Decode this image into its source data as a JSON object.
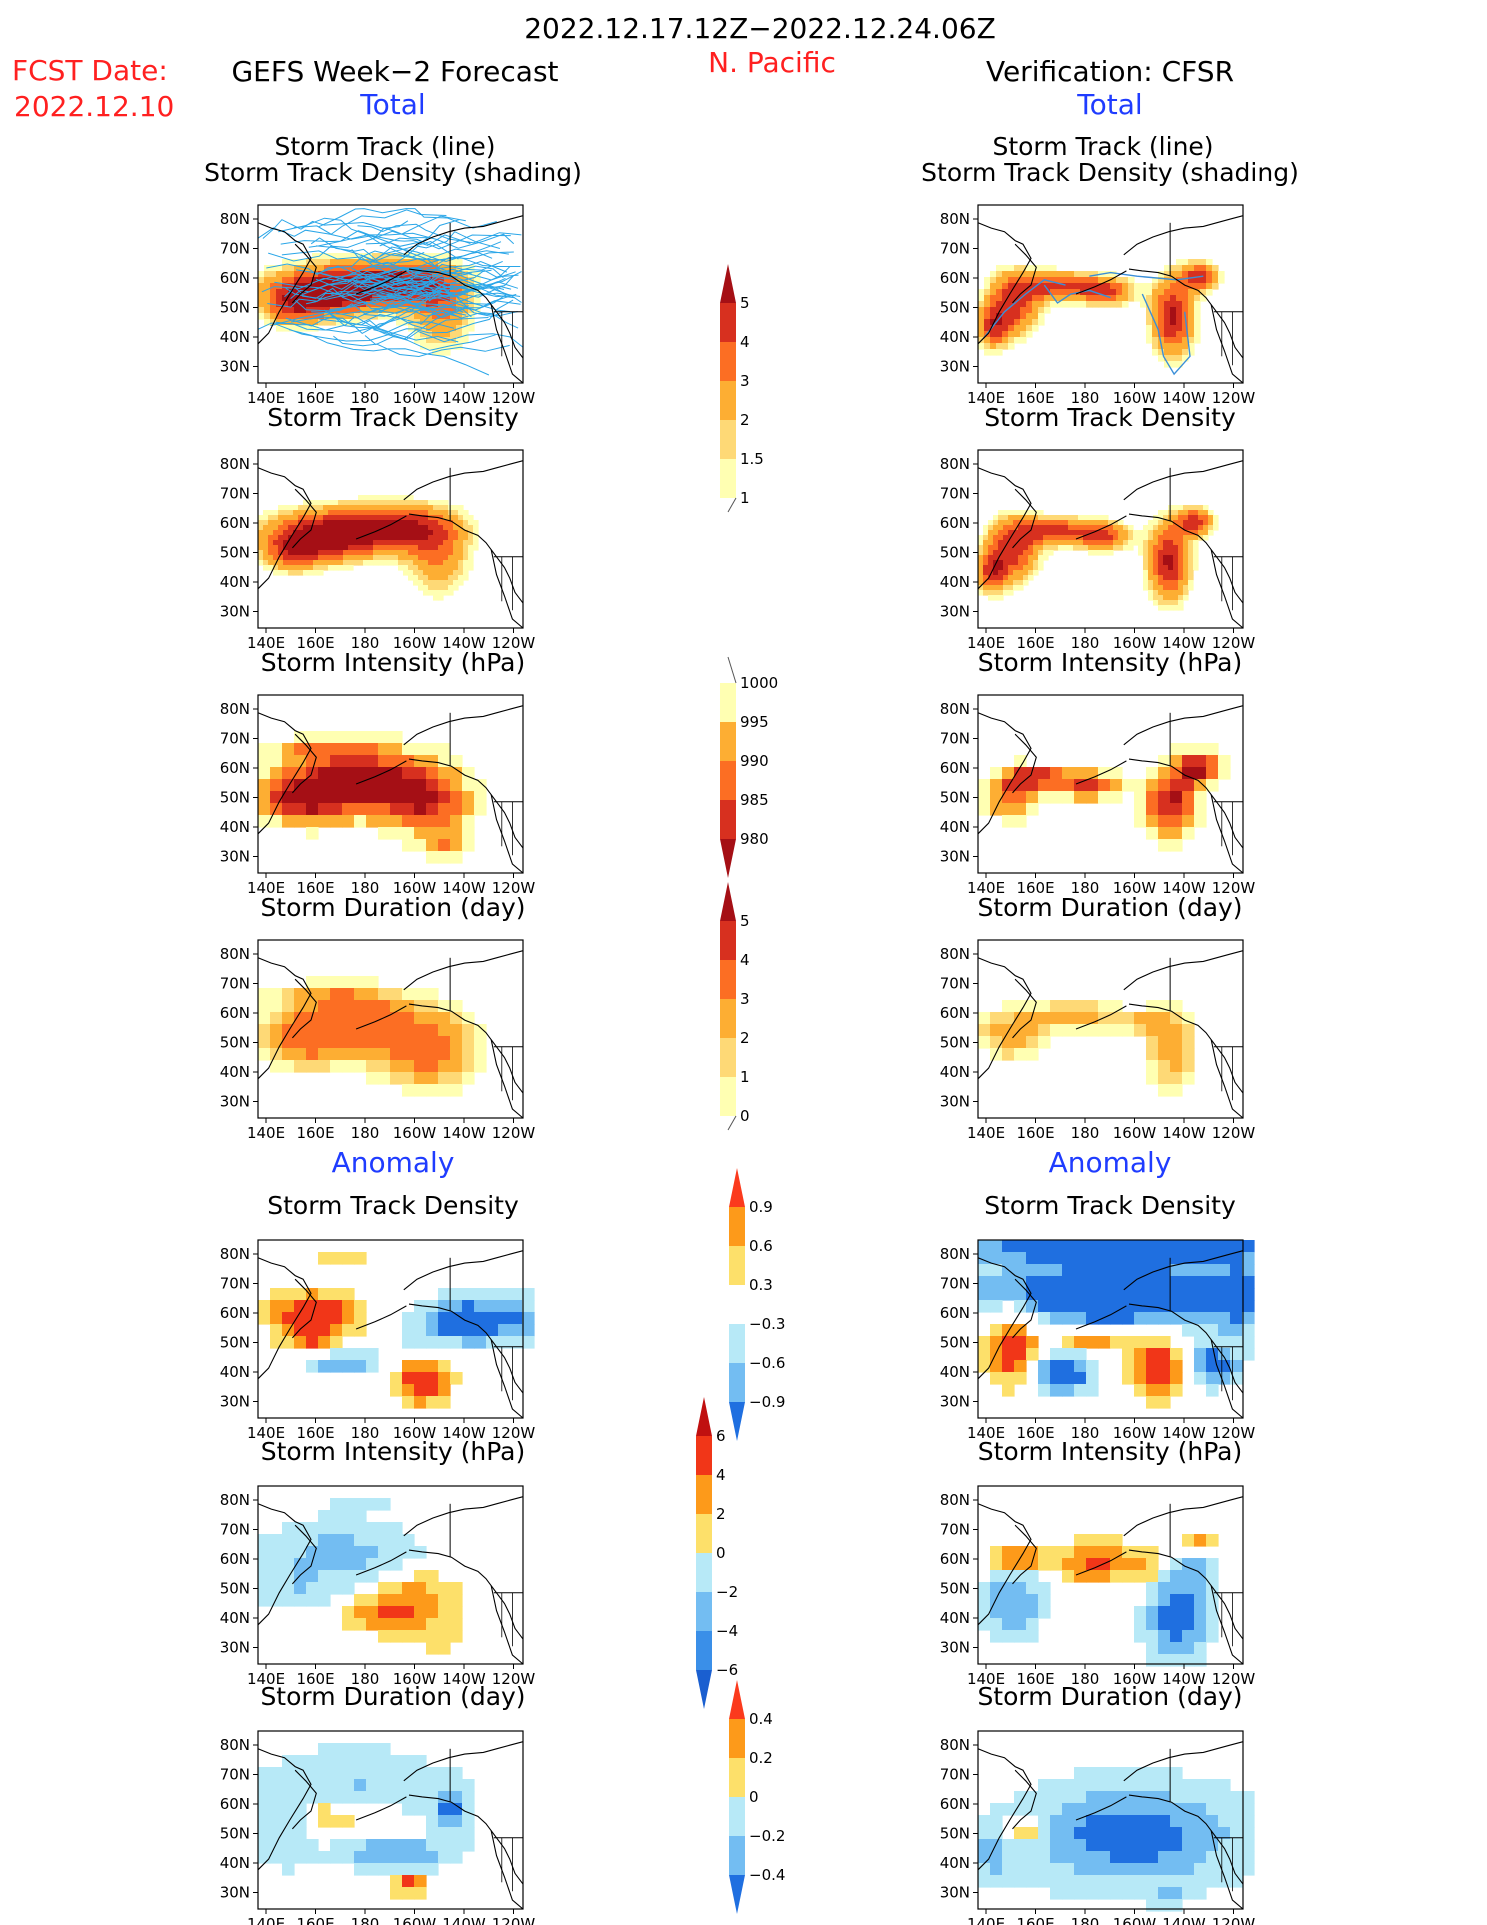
{
  "header": {
    "period": "2022.12.17.12Z−2022.12.24.06Z",
    "fcst_label": "FCST Date:",
    "fcst_date": "2022.12.10",
    "region": "N. Pacific",
    "left_model": "GEFS Week−2 Forecast",
    "right_model": "Verification: CFSR",
    "total_label": "Total",
    "anomaly_label": "Anomaly"
  },
  "axis": {
    "lat_ticks": [
      "80N",
      "70N",
      "60N",
      "50N",
      "40N",
      "30N"
    ],
    "lon_ticks": [
      "140E",
      "160E",
      "180",
      "160W",
      "140W",
      "120W"
    ]
  },
  "panels": {
    "row1_title_line1": "Storm Track (line)",
    "row1_title_line2": "Storm Track Density (shading)",
    "density_title": "Storm Track Density",
    "intensity_title": "Storm Intensity (hPa)",
    "duration_title": "Storm Duration (day)"
  },
  "colorbars": {
    "density": {
      "labels": [
        "5",
        "4",
        "3",
        "2",
        "1.5",
        "1"
      ],
      "colors": [
        "#a50f15",
        "#d7301f",
        "#fc6e23",
        "#fdae33",
        "#fed976",
        "#ffffb2"
      ]
    },
    "intensity": {
      "labels": [
        "1000",
        "995",
        "990",
        "985",
        "980"
      ],
      "colors": [
        "#ffffb2",
        "#fdae33",
        "#fc6e23",
        "#d7301f",
        "#a50f15"
      ]
    },
    "duration": {
      "labels": [
        "5",
        "4",
        "3",
        "2",
        "1",
        "0"
      ],
      "colors": [
        "#a50f15",
        "#d7301f",
        "#fc6e23",
        "#fdae33",
        "#fed976",
        "#ffffb2"
      ]
    },
    "anom_density": {
      "labels": [
        "0.9",
        "0.6",
        "0.3",
        "−0.3",
        "−0.6",
        "−0.9"
      ],
      "colors": [
        "#fb3a1d",
        "#fd9a1a",
        "#fde06a",
        "#ffffff",
        "#b7e9f7",
        "#73bdf2",
        "#1f6fe0"
      ]
    },
    "anom_intensity": {
      "labels": [
        "6",
        "4",
        "2",
        "0",
        "−2",
        "−4",
        "−6"
      ],
      "colors": [
        "#c01010",
        "#f13618",
        "#fd9a1a",
        "#fde06a",
        "#b7e9f7",
        "#73bdf2",
        "#3a8fe8",
        "#1a5fd0"
      ]
    },
    "anom_duration": {
      "labels": [
        "0.4",
        "0.2",
        "0",
        "−0.2",
        "−0.4"
      ],
      "colors": [
        "#fb3a1d",
        "#fd9a1a",
        "#fde06a",
        "#b7e9f7",
        "#73bdf2",
        "#1f6fe0"
      ]
    }
  },
  "colors": {
    "header_red": "#ff2020",
    "header_blue": "#1f3cff",
    "track_line": "#2aa6e8",
    "track_line_verif": "#3b8fd8"
  }
}
